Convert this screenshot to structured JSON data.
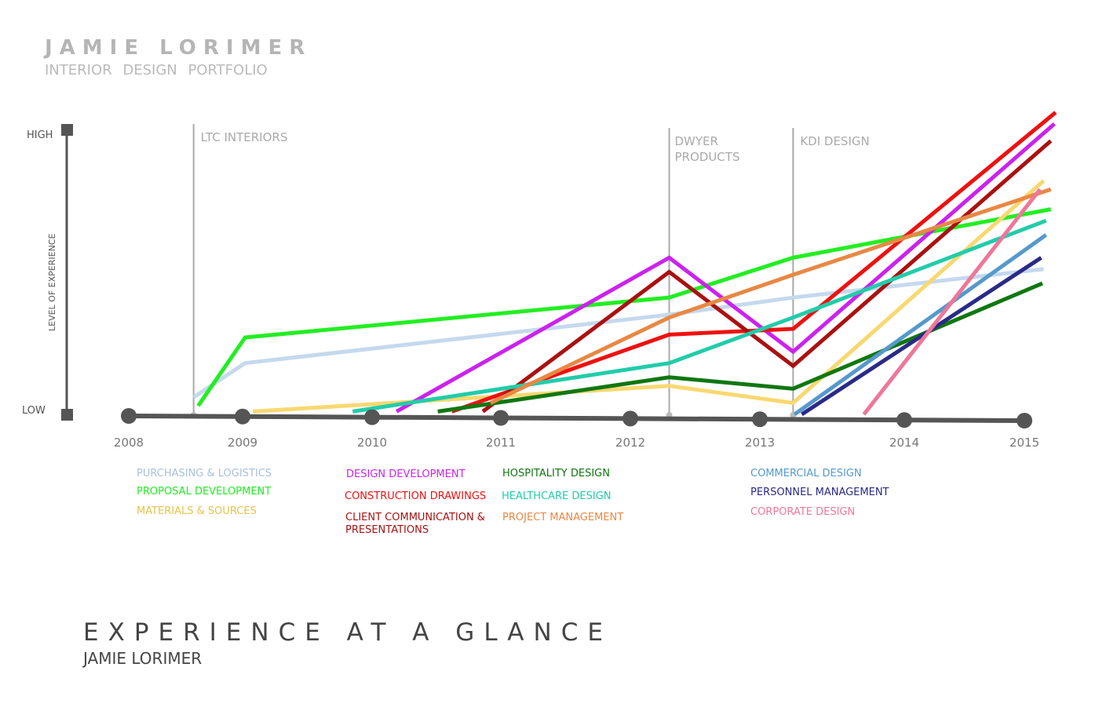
{
  "header": {
    "name": "JAMIE LORIMER",
    "subtitle": "INTERIOR DESIGN PORTFOLIO"
  },
  "footer": {
    "title": "EXPERIENCE AT A GLANCE",
    "name": "JAMIE LORIMER"
  },
  "chart_data": {
    "type": "line",
    "ylabel": "LEVEL OF EXPERIENCE",
    "y_ticks": {
      "low": "LOW",
      "high": "HIGH"
    },
    "ylim": [
      0,
      1
    ],
    "x_ticks": [
      "2008",
      "2009",
      "2010",
      "2011",
      "2012",
      "2013",
      "2014",
      "2015"
    ],
    "grid": false,
    "legend": "bottom",
    "markers": [
      {
        "label": "LTC INTERIORS",
        "x": 2008.57
      },
      {
        "label": "DWYER PRODUCTS",
        "x": 2012.3
      },
      {
        "label": "KDI DESIGN",
        "x": 2013.23
      }
    ],
    "series": [
      {
        "name": "PURCHASING & LOGISTICS",
        "color": "#c5d9ee",
        "points": [
          [
            2008.57,
            0.06
          ],
          [
            2009.02,
            0.18
          ],
          [
            2012.3,
            0.35
          ],
          [
            2013.23,
            0.41
          ],
          [
            2015.16,
            0.51
          ]
        ]
      },
      {
        "name": "PROPOSAL DEVELOPMENT",
        "color": "#22ee22",
        "points": [
          [
            2008.61,
            0.03
          ],
          [
            2009.02,
            0.27
          ],
          [
            2012.3,
            0.41
          ],
          [
            2013.23,
            0.55
          ],
          [
            2015.22,
            0.72
          ]
        ]
      },
      {
        "name": "MATERIALS & SOURCES",
        "color": "#f8d870",
        "points": [
          [
            2009.08,
            0.01
          ],
          [
            2012.3,
            0.1
          ],
          [
            2013.23,
            0.04
          ],
          [
            2015.16,
            0.82
          ]
        ]
      },
      {
        "name": "DESIGN DEVELOPMENT",
        "color": "#cc22ee",
        "points": [
          [
            2010.19,
            0.01
          ],
          [
            2012.3,
            0.55
          ],
          [
            2013.23,
            0.22
          ],
          [
            2015.25,
            1.02
          ]
        ]
      },
      {
        "name": "CONSTRUCTION DRAWINGS",
        "color": "#ee1111",
        "points": [
          [
            2010.62,
            0.01
          ],
          [
            2012.3,
            0.28
          ],
          [
            2013.23,
            0.3
          ],
          [
            2015.26,
            1.06
          ]
        ]
      },
      {
        "name": "CLIENT COMMUNICATION & PRESENTATIONS",
        "color": "#aa1111",
        "points": [
          [
            2010.86,
            0.01
          ],
          [
            2012.3,
            0.5
          ],
          [
            2013.23,
            0.17
          ],
          [
            2015.22,
            0.96
          ]
        ]
      },
      {
        "name": "HOSPITALITY DESIGN",
        "color": "#117711",
        "points": [
          [
            2010.51,
            0.01
          ],
          [
            2012.3,
            0.13
          ],
          [
            2013.23,
            0.09
          ],
          [
            2015.15,
            0.46
          ]
        ]
      },
      {
        "name": "HEALTHCARE DESIGN",
        "color": "#22ccaa",
        "points": [
          [
            2009.85,
            0.01
          ],
          [
            2012.3,
            0.18
          ],
          [
            2013.23,
            0.34
          ],
          [
            2015.18,
            0.68
          ]
        ]
      },
      {
        "name": "PROJECT MANAGEMENT",
        "color": "#e88844",
        "points": [
          [
            2010.92,
            0.04
          ],
          [
            2012.3,
            0.34
          ],
          [
            2013.23,
            0.49
          ],
          [
            2015.22,
            0.79
          ]
        ]
      },
      {
        "name": "COMMERCIAL DESIGN",
        "color": "#5599cc",
        "points": [
          [
            2013.24,
            0.0
          ],
          [
            2015.18,
            0.63
          ]
        ]
      },
      {
        "name": "PERSONNEL MANAGEMENT",
        "color": "#2a2a88",
        "points": [
          [
            2013.29,
            0.0
          ],
          [
            2015.14,
            0.55
          ]
        ]
      },
      {
        "name": "CORPORATE DESIGN",
        "color": "#ee7799",
        "points": [
          [
            2013.72,
            0.0
          ],
          [
            2015.13,
            0.79
          ]
        ]
      }
    ]
  }
}
